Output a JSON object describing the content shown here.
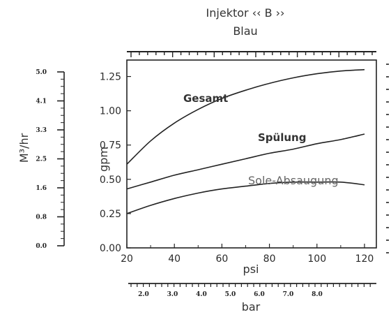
{
  "chart_data": {
    "type": "line",
    "title": "Injektor ‹‹ B ››",
    "subtitle": "Blau",
    "xlabel": "psi",
    "ylabel": "gpm",
    "x_ticks": [
      "20",
      "40",
      "60",
      "80",
      "100",
      "120"
    ],
    "y_ticks": [
      "0.00",
      "0.25",
      "0.50",
      "0.75",
      "1.00",
      "1.25"
    ],
    "xlim": [
      20,
      125
    ],
    "ylim": [
      0,
      1.37
    ],
    "grid": false,
    "series": [
      {
        "name": "Gesamt",
        "x": [
          20,
          30,
          40,
          50,
          60,
          70,
          80,
          90,
          100,
          110,
          120
        ],
        "y": [
          0.61,
          0.78,
          0.91,
          1.01,
          1.09,
          1.15,
          1.2,
          1.24,
          1.27,
          1.29,
          1.3
        ]
      },
      {
        "name": "Spülung",
        "x": [
          20,
          30,
          40,
          50,
          60,
          70,
          80,
          90,
          100,
          110,
          120
        ],
        "y": [
          0.43,
          0.48,
          0.53,
          0.57,
          0.61,
          0.65,
          0.69,
          0.72,
          0.76,
          0.79,
          0.83
        ]
      },
      {
        "name": "Sole-Absaugung",
        "x": [
          20,
          30,
          40,
          50,
          60,
          70,
          80,
          90,
          100,
          110,
          120
        ],
        "y": [
          0.25,
          0.31,
          0.36,
          0.4,
          0.43,
          0.45,
          0.47,
          0.48,
          0.48,
          0.48,
          0.46
        ]
      }
    ],
    "secondary_y": {
      "label": "M³/hr",
      "ticks": [
        "5.0",
        "4.1",
        "3.3",
        "2.5",
        "1.6",
        "0.8",
        "0.0"
      ]
    },
    "secondary_x": {
      "label": "bar",
      "ticks": [
        "2.0",
        "3.0",
        "4.0",
        "5.0",
        "6.0",
        "7.0",
        "8.0"
      ]
    }
  }
}
